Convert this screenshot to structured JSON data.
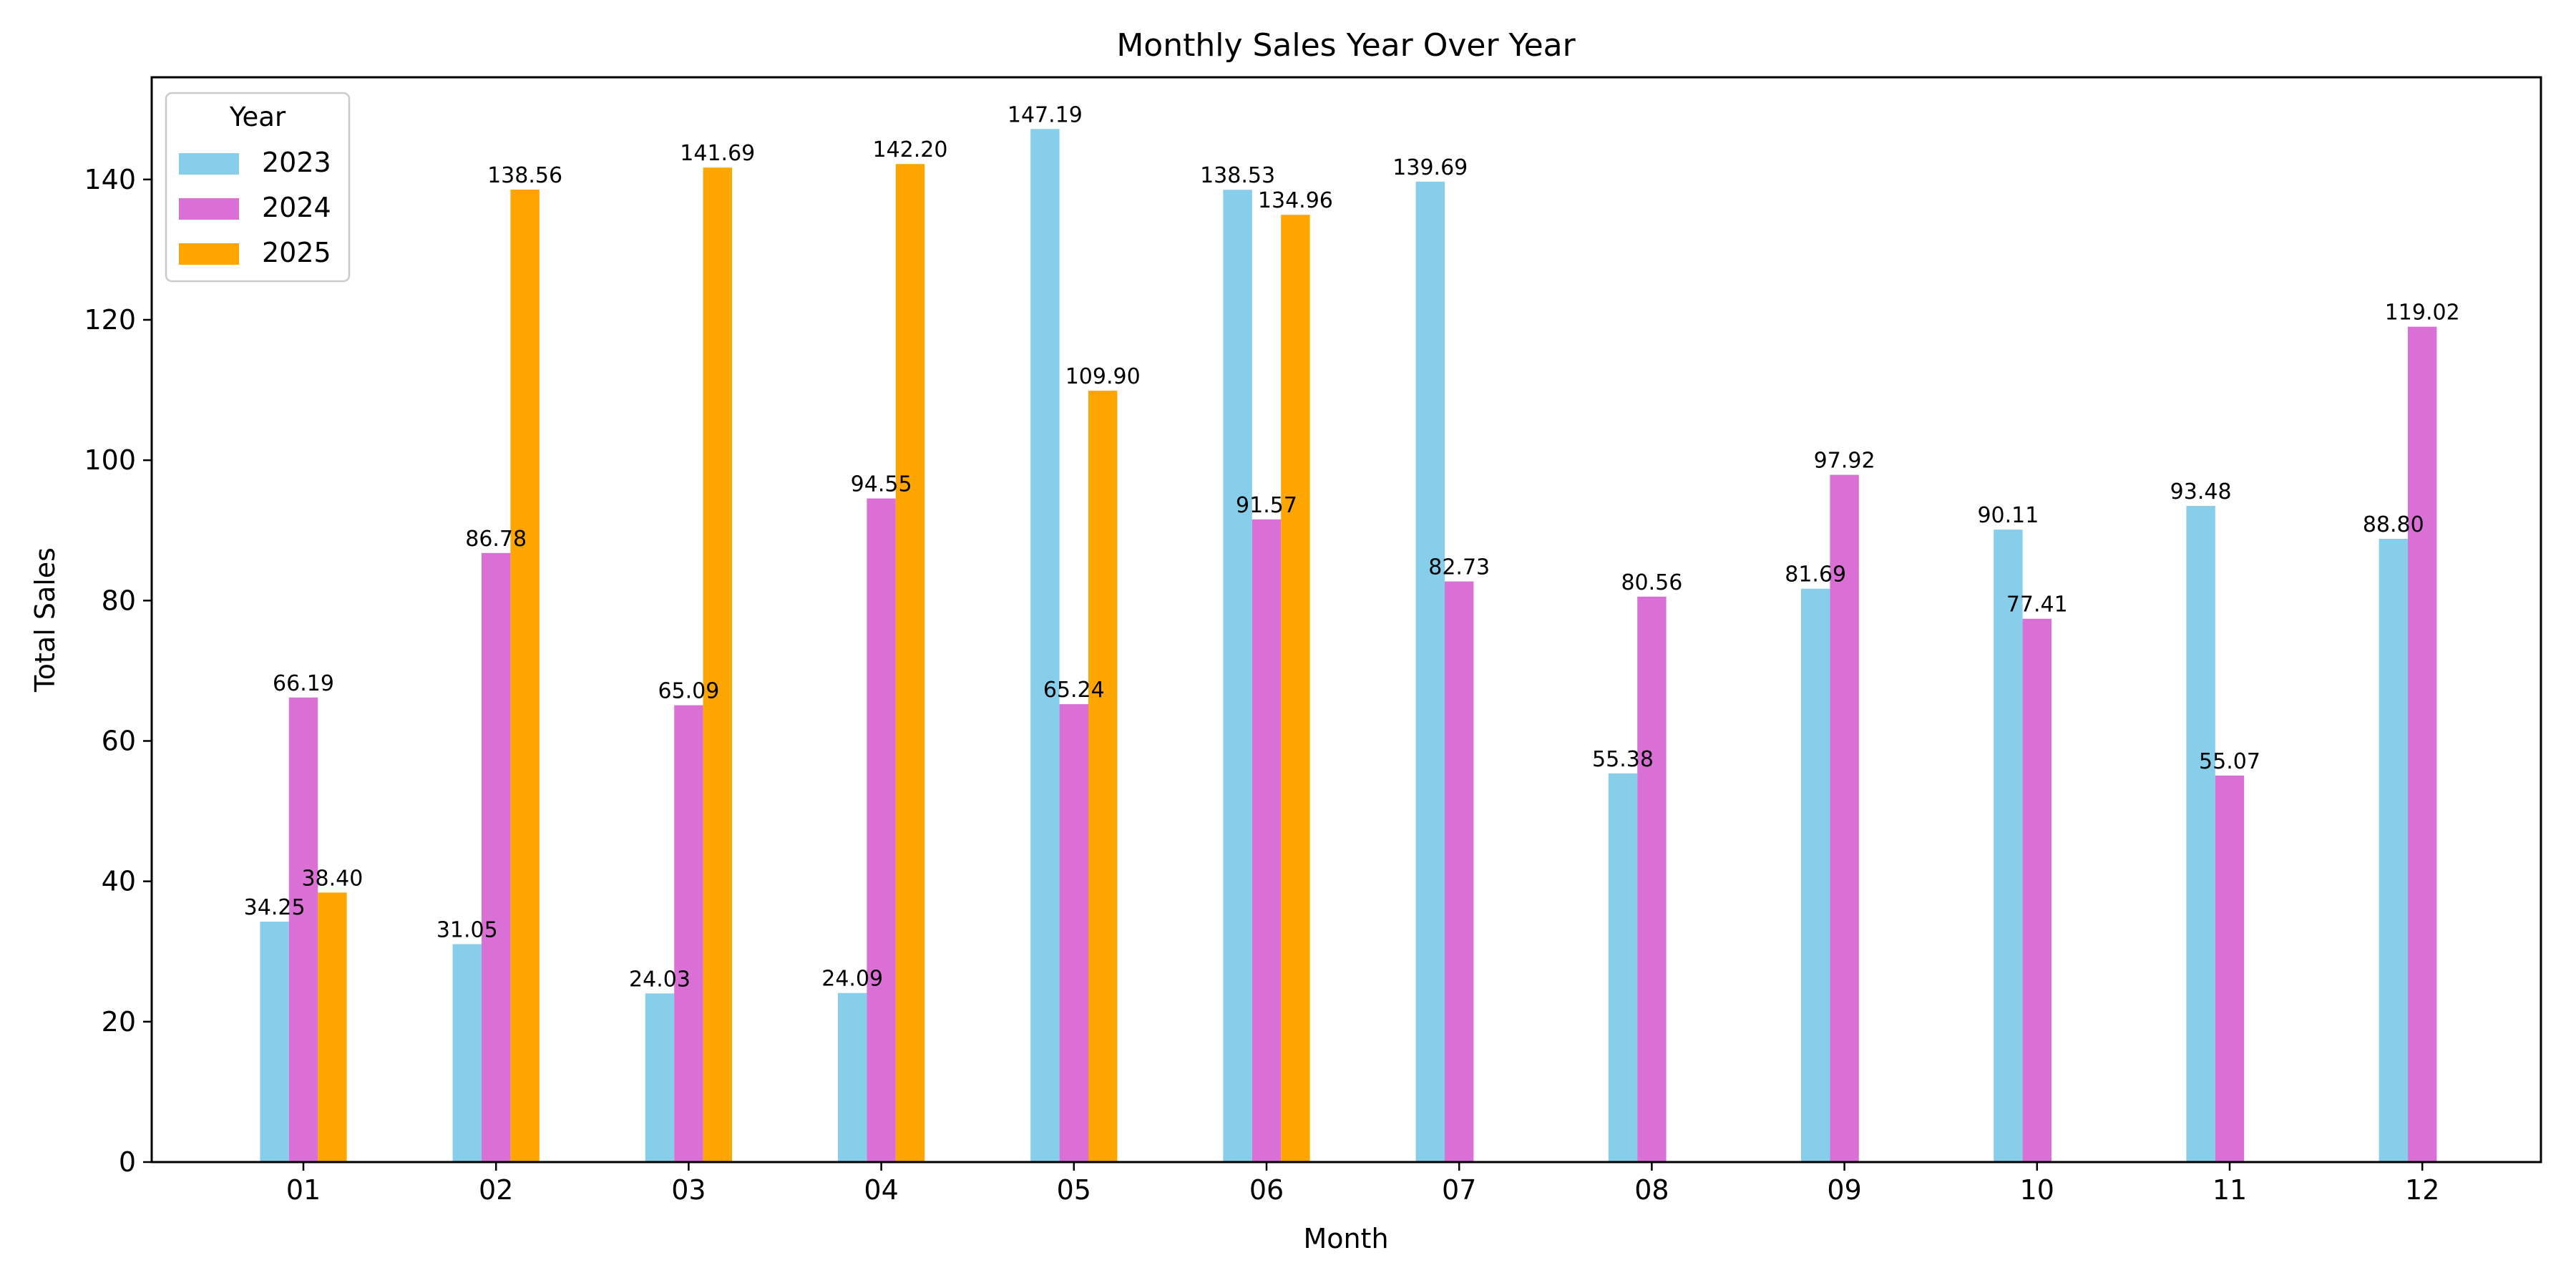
{
  "chart_data": {
    "type": "bar",
    "title": "Monthly Sales Year Over Year",
    "xlabel": "Month",
    "ylabel": "Total Sales",
    "categories": [
      "01",
      "02",
      "03",
      "04",
      "05",
      "06",
      "07",
      "08",
      "09",
      "10",
      "11",
      "12"
    ],
    "ylim": [
      0,
      154.56
    ],
    "yticks": [
      "0",
      "20",
      "40",
      "60",
      "80",
      "100",
      "120",
      "140"
    ],
    "grid": false,
    "legend": {
      "title": "Year",
      "position": "top-left"
    },
    "series": [
      {
        "name": "2023",
        "color": "#87ceeb",
        "values": [
          34.25,
          31.05,
          24.03,
          24.09,
          147.19,
          138.53,
          139.69,
          55.38,
          81.69,
          90.11,
          93.48,
          88.8
        ],
        "labels": [
          "34.25",
          "31.05",
          "24.03",
          "24.09",
          "147.19",
          "138.53",
          "139.69",
          "55.38",
          "81.69",
          "90.11",
          "93.48",
          "88.80"
        ]
      },
      {
        "name": "2024",
        "color": "#da70d6",
        "values": [
          66.19,
          86.78,
          65.09,
          94.55,
          65.24,
          91.57,
          82.73,
          80.56,
          97.92,
          77.41,
          55.07,
          119.02
        ],
        "labels": [
          "66.19",
          "86.78",
          "65.09",
          "94.55",
          "65.24",
          "91.57",
          "82.73",
          "80.56",
          "97.92",
          "77.41",
          "55.07",
          "119.02"
        ]
      },
      {
        "name": "2025",
        "color": "#ffa500",
        "values": [
          38.4,
          138.56,
          141.69,
          142.2,
          109.9,
          134.96,
          null,
          null,
          null,
          null,
          null,
          null
        ],
        "labels": [
          "38.40",
          "138.56",
          "141.69",
          "142.20",
          "109.90",
          "134.96",
          null,
          null,
          null,
          null,
          null,
          null
        ]
      }
    ]
  }
}
